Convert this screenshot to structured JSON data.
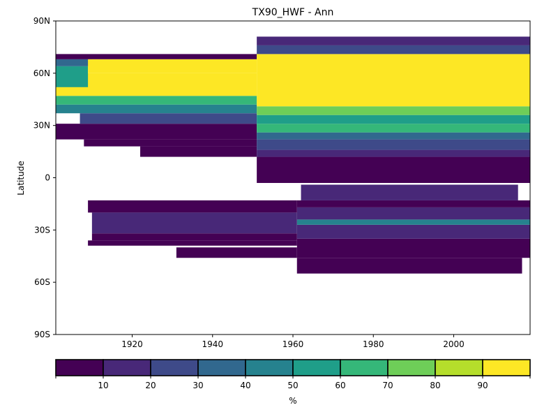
{
  "chart_data": {
    "type": "heatmap",
    "title": "TX90_HWF - Ann",
    "xlabel": "",
    "ylabel": "Latitude",
    "xlim": [
      1901,
      2019
    ],
    "ylim": [
      -90,
      90
    ],
    "xticks": [
      1920,
      1940,
      1960,
      1980,
      2000
    ],
    "yticks": [
      {
        "value": 90,
        "label": "90N"
      },
      {
        "value": 60,
        "label": "60N"
      },
      {
        "value": 30,
        "label": "30N"
      },
      {
        "value": 0,
        "label": "0"
      },
      {
        "value": -30,
        "label": "30S"
      },
      {
        "value": -60,
        "label": "60S"
      },
      {
        "value": -90,
        "label": "90S"
      }
    ],
    "colorbar": {
      "label": "%",
      "bounds": [
        0,
        10,
        20,
        30,
        40,
        50,
        60,
        70,
        80,
        90,
        100
      ],
      "tick_labels": [
        "10",
        "20",
        "30",
        "40",
        "50",
        "60",
        "70",
        "80",
        "90"
      ],
      "colors": [
        "#440154",
        "#482878",
        "#3e4a89",
        "#31688e",
        "#26828e",
        "#1f9e89",
        "#35b779",
        "#6ece58",
        "#b5de2b",
        "#fde725"
      ]
    },
    "regions": [
      {
        "x": [
          1901,
          1951
        ],
        "y": [
          22,
          31
        ],
        "value": 5
      },
      {
        "x": [
          1907,
          1951
        ],
        "y": [
          31,
          37
        ],
        "value": 25
      },
      {
        "x": [
          1901,
          1951
        ],
        "y": [
          37,
          42
        ],
        "value": 45
      },
      {
        "x": [
          1901,
          1951
        ],
        "y": [
          42,
          47
        ],
        "value": 62
      },
      {
        "x": [
          1901,
          1951
        ],
        "y": [
          47,
          60
        ],
        "value": 95
      },
      {
        "x": [
          1901,
          1909
        ],
        "y": [
          52,
          64
        ],
        "value": 55
      },
      {
        "x": [
          1901,
          1910
        ],
        "y": [
          64,
          68
        ],
        "value": 35
      },
      {
        "x": [
          1901,
          1951
        ],
        "y": [
          68,
          71
        ],
        "value": 5
      },
      {
        "x": [
          1909,
          1951
        ],
        "y": [
          60,
          68
        ],
        "value": 95
      },
      {
        "x": [
          1908,
          1951
        ],
        "y": [
          18,
          22
        ],
        "value": 5
      },
      {
        "x": [
          1922,
          1951
        ],
        "y": [
          12,
          18
        ],
        "value": 5
      },
      {
        "x": [
          1951,
          2019
        ],
        "y": [
          -3,
          12
        ],
        "value": 5
      },
      {
        "x": [
          1951,
          2019
        ],
        "y": [
          12,
          16
        ],
        "value": 15
      },
      {
        "x": [
          1951,
          2019
        ],
        "y": [
          16,
          22
        ],
        "value": 25
      },
      {
        "x": [
          1951,
          2019
        ],
        "y": [
          22,
          26
        ],
        "value": 35
      },
      {
        "x": [
          1951,
          2019
        ],
        "y": [
          26,
          31
        ],
        "value": 62
      },
      {
        "x": [
          1951,
          2019
        ],
        "y": [
          31,
          36
        ],
        "value": 55
      },
      {
        "x": [
          1951,
          2019
        ],
        "y": [
          36,
          41
        ],
        "value": 75
      },
      {
        "x": [
          1951,
          2019
        ],
        "y": [
          41,
          71
        ],
        "value": 95
      },
      {
        "x": [
          1951,
          2019
        ],
        "y": [
          71,
          76
        ],
        "value": 25
      },
      {
        "x": [
          1951,
          2019
        ],
        "y": [
          76,
          81
        ],
        "value": 15
      },
      {
        "x": [
          1961,
          2017
        ],
        "y": [
          -55,
          -46
        ],
        "value": 5
      },
      {
        "x": [
          1961,
          2019
        ],
        "y": [
          -46,
          -35
        ],
        "value": 5
      },
      {
        "x": [
          1961,
          2019
        ],
        "y": [
          -35,
          -27
        ],
        "value": 15
      },
      {
        "x": [
          1961,
          2019
        ],
        "y": [
          -27,
          -24
        ],
        "value": 45
      },
      {
        "x": [
          1961,
          2019
        ],
        "y": [
          -24,
          -17
        ],
        "value": 15
      },
      {
        "x": [
          1961,
          2019
        ],
        "y": [
          -17,
          -13
        ],
        "value": 5
      },
      {
        "x": [
          1962,
          2016
        ],
        "y": [
          -13,
          -4
        ],
        "value": 15
      },
      {
        "x": [
          1909,
          1961
        ],
        "y": [
          -20,
          -13
        ],
        "value": 5
      },
      {
        "x": [
          1910,
          1961
        ],
        "y": [
          -32,
          -20
        ],
        "value": 15
      },
      {
        "x": [
          1910,
          1961
        ],
        "y": [
          -36,
          -32
        ],
        "value": 5
      },
      {
        "x": [
          1909,
          1961
        ],
        "y": [
          -39,
          -36
        ],
        "value": 5
      },
      {
        "x": [
          1931,
          1961
        ],
        "y": [
          -46,
          -40
        ],
        "value": 5
      }
    ]
  }
}
